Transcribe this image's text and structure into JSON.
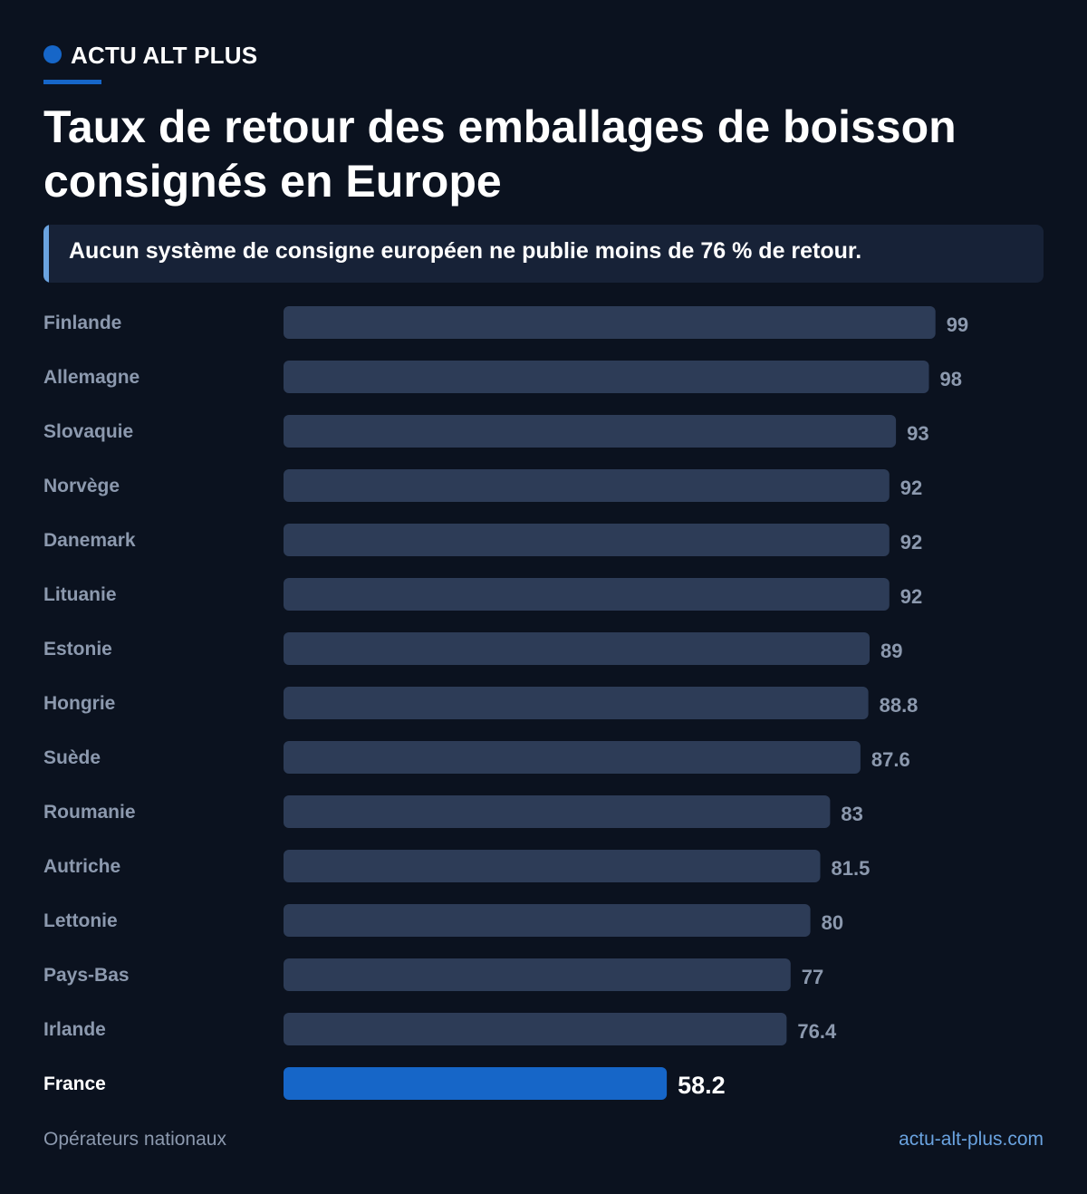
{
  "header": {
    "brand": "ACTU ALT PLUS",
    "title": "Taux de retour des emballages de boisson consignés en Europe",
    "callout": "Aucun système de consigne européen ne publie moins de 76 % de retour."
  },
  "footer": {
    "source": "Opérateurs nationaux",
    "site": "actu-alt-plus.com"
  },
  "colors": {
    "background": "#0b121f",
    "bar_default": "#2d3c57",
    "bar_highlight": "#1666c8",
    "label_default": "#8c99ae",
    "label_highlight": "#ffffff",
    "accent": "#6aa3e0"
  },
  "chart_data": {
    "type": "bar",
    "orientation": "horizontal",
    "title": "Taux de retour des emballages de boisson consignés en Europe",
    "xlabel": "",
    "ylabel": "",
    "xlim": [
      0,
      100
    ],
    "grid": false,
    "legend": "none",
    "highlight": "France",
    "categories": [
      "Finlande",
      "Allemagne",
      "Slovaquie",
      "Norvège",
      "Danemark",
      "Lituanie",
      "Estonie",
      "Hongrie",
      "Suède",
      "Roumanie",
      "Autriche",
      "Lettonie",
      "Pays-Bas",
      "Irlande",
      "France"
    ],
    "values": [
      99,
      98,
      93,
      92,
      92,
      92,
      89,
      88.8,
      87.6,
      83,
      81.5,
      80,
      77,
      76.4,
      58.2
    ]
  }
}
